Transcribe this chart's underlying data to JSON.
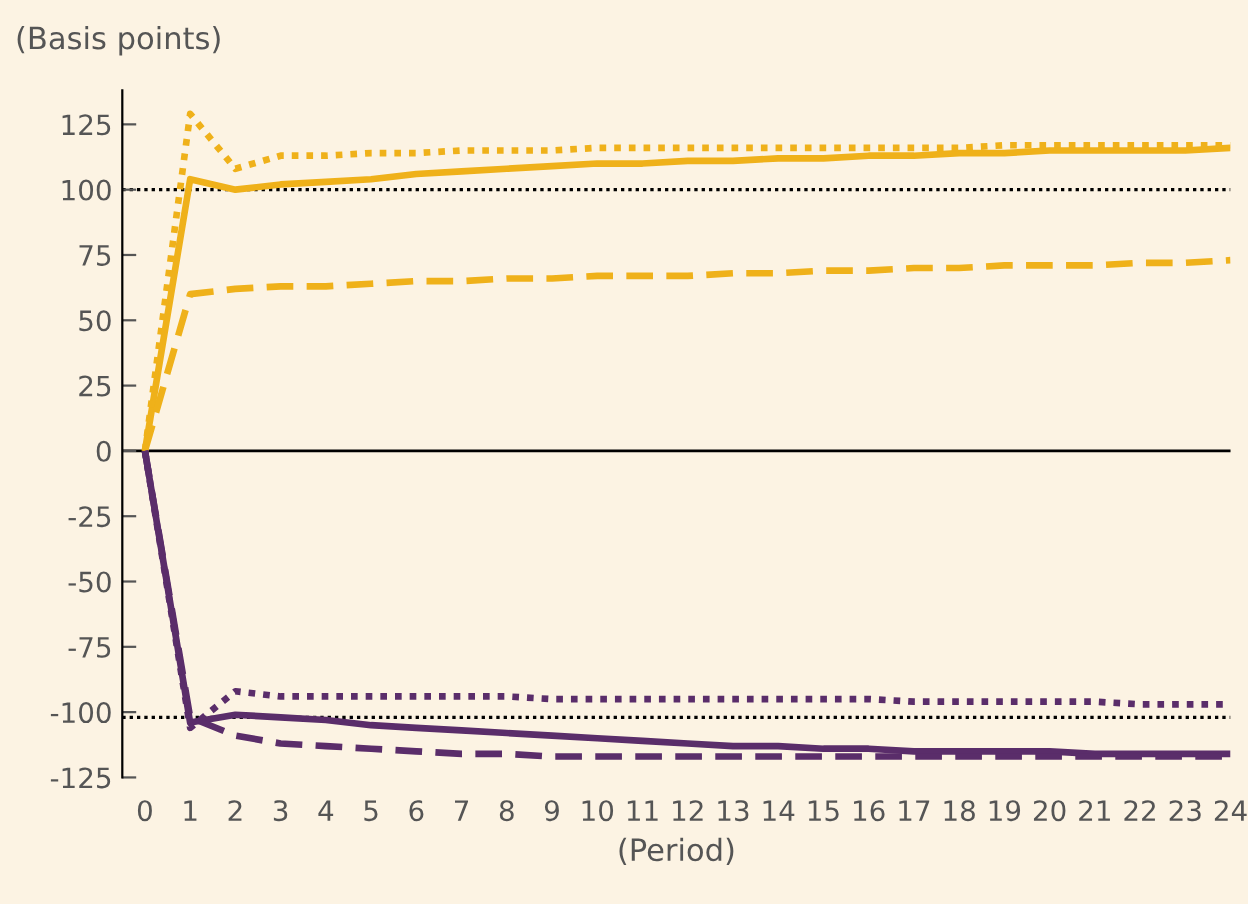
{
  "chart_data": {
    "type": "line",
    "ylabel": "(Basis points)",
    "xlabel": "(Period)",
    "x": [
      0,
      1,
      2,
      3,
      4,
      5,
      6,
      7,
      8,
      9,
      10,
      11,
      12,
      13,
      14,
      15,
      16,
      17,
      18,
      19,
      20,
      21,
      22,
      23,
      24
    ],
    "series": [
      {
        "color": "#efb11a",
        "line_style": "solid",
        "values": [
          0,
          104,
          100,
          102,
          103,
          104,
          106,
          107,
          108,
          109,
          110,
          110,
          111,
          111,
          112,
          112,
          113,
          113,
          114,
          114,
          115,
          115,
          115,
          115,
          116
        ]
      },
      {
        "color": "#efb11a",
        "line_style": "dotted",
        "values": [
          0,
          129,
          108,
          113,
          113,
          114,
          114,
          115,
          115,
          115,
          116,
          116,
          116,
          116,
          116,
          116,
          116,
          116,
          116,
          117,
          117,
          117,
          117,
          117,
          117
        ]
      },
      {
        "color": "#efb11a",
        "line_style": "dashed",
        "values": [
          0,
          60,
          62,
          63,
          63,
          64,
          65,
          65,
          66,
          66,
          67,
          67,
          67,
          68,
          68,
          69,
          69,
          70,
          70,
          71,
          71,
          71,
          72,
          72,
          73
        ]
      },
      {
        "color": "#5a2d6a",
        "line_style": "solid",
        "values": [
          0,
          -104,
          -101,
          -102,
          -103,
          -105,
          -106,
          -107,
          -108,
          -109,
          -110,
          -111,
          -112,
          -113,
          -113,
          -114,
          -114,
          -115,
          -115,
          -115,
          -115,
          -116,
          -116,
          -116,
          -116
        ]
      },
      {
        "color": "#5a2d6a",
        "line_style": "dotted",
        "values": [
          0,
          -106,
          -92,
          -94,
          -94,
          -94,
          -94,
          -94,
          -94,
          -95,
          -95,
          -95,
          -95,
          -95,
          -95,
          -95,
          -95,
          -96,
          -96,
          -96,
          -96,
          -96,
          -97,
          -97,
          -97
        ]
      },
      {
        "color": "#5a2d6a",
        "line_style": "dashed",
        "values": [
          0,
          -102,
          -109,
          -112,
          -113,
          -114,
          -115,
          -116,
          -116,
          -117,
          -117,
          -117,
          -117,
          -117,
          -117,
          -117,
          -117,
          -117,
          -117,
          -117,
          -117,
          -117,
          -117,
          -117,
          -117
        ]
      }
    ],
    "ref_lines": [
      {
        "axis": "y",
        "value": 0,
        "color": "#000000",
        "line_style": "solid"
      },
      {
        "axis": "y",
        "value": 100,
        "color": "#000000",
        "line_style": "dotted"
      },
      {
        "axis": "y",
        "value": -102,
        "color": "#000000",
        "line_style": "dotted"
      }
    ],
    "xlim": [
      -0.5,
      24
    ],
    "xticks": [
      0,
      1,
      2,
      3,
      4,
      5,
      6,
      7,
      8,
      9,
      10,
      11,
      12,
      13,
      14,
      15,
      16,
      17,
      18,
      19,
      20,
      21,
      22,
      23,
      24
    ],
    "ylim": [
      -125,
      138
    ],
    "yticks": [
      -125,
      -100,
      -75,
      -50,
      -25,
      0,
      25,
      50,
      75,
      100,
      125
    ],
    "grid": false,
    "legend": false
  }
}
